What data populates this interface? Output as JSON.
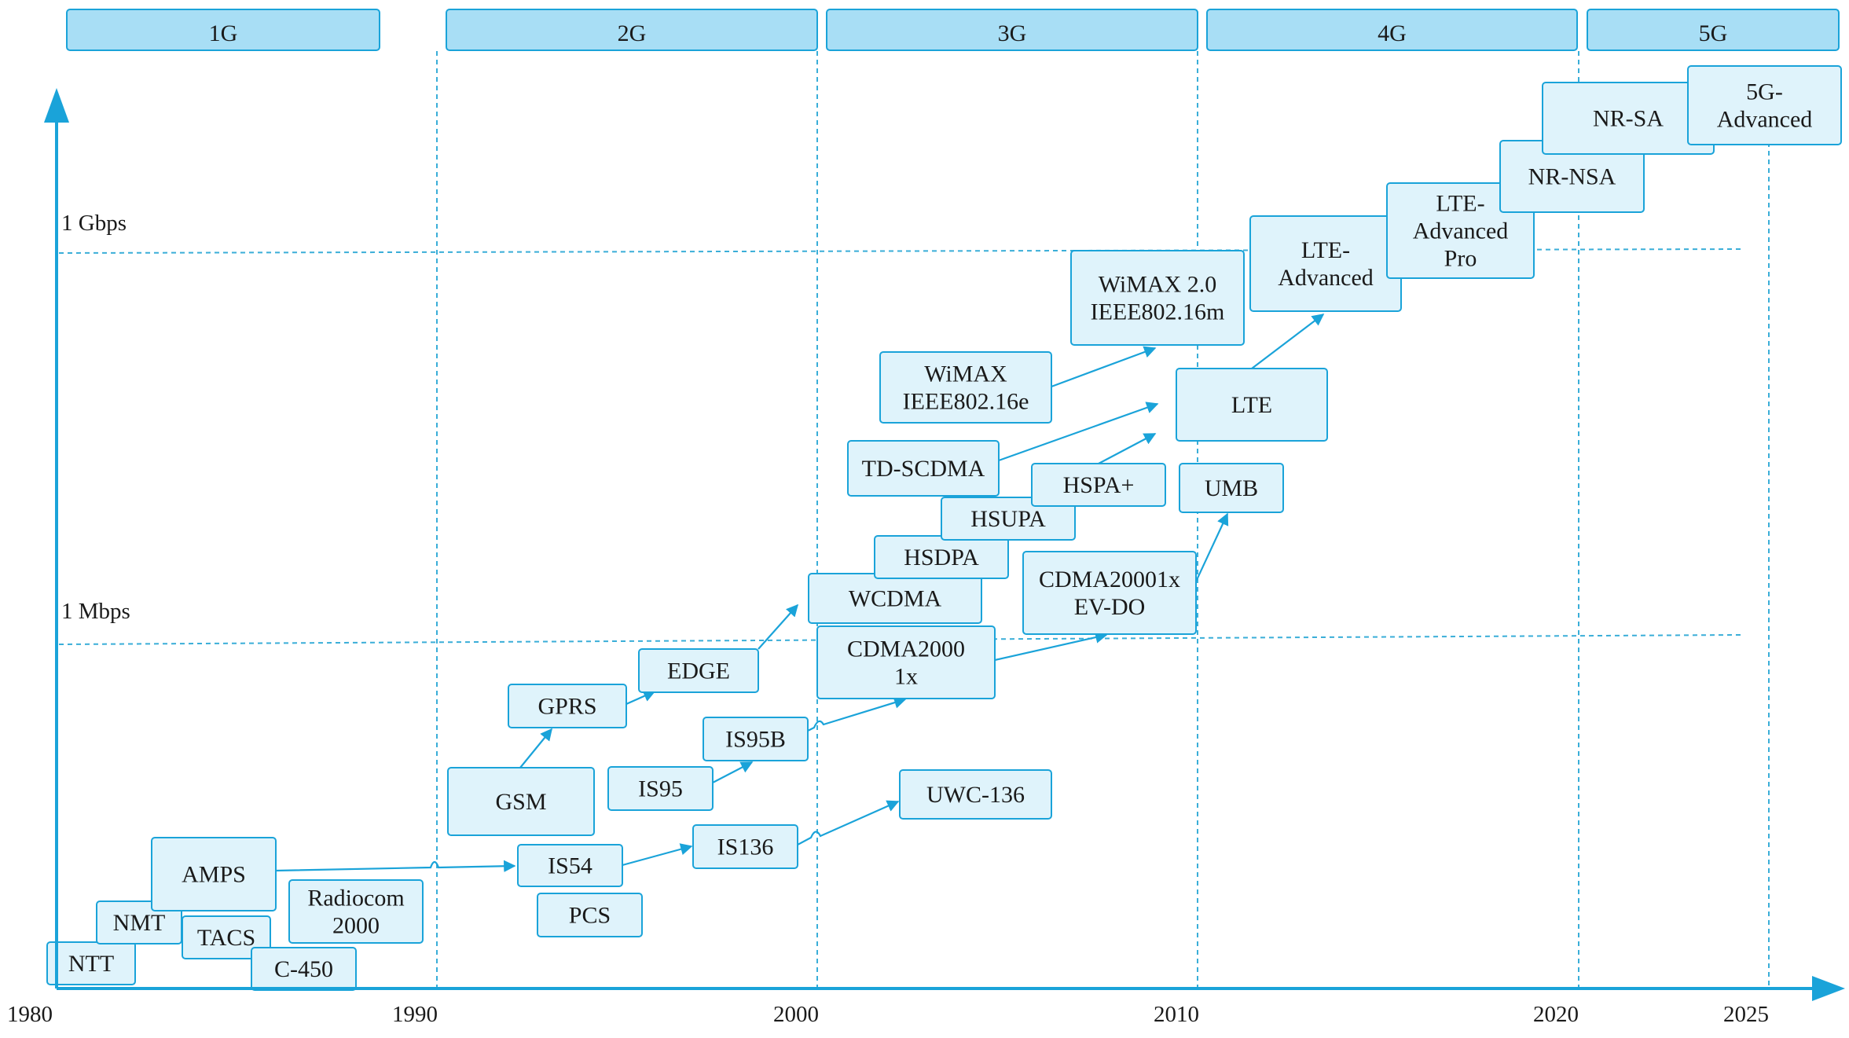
{
  "colors": {
    "accent": "#1aa3d9",
    "box_fill": "#dff3fb",
    "gen_fill": "#a8def5",
    "grid": "#3aaed8",
    "text": "#1a1a1a"
  },
  "generations": [
    "1G",
    "2G",
    "3G",
    "4G",
    "5G"
  ],
  "axis": {
    "x_ticks": [
      "1980",
      "1990",
      "2000",
      "2010",
      "2020",
      "2025"
    ],
    "y_levels": [
      "1 Mbps",
      "1 Gbps"
    ]
  },
  "technologies": {
    "ntt": [
      "NTT"
    ],
    "nmt": [
      "NMT"
    ],
    "amps": [
      "AMPS"
    ],
    "tacs": [
      "TACS"
    ],
    "c450": [
      "C-450"
    ],
    "radiocom": [
      "Radiocom",
      "2000"
    ],
    "gsm": [
      "GSM"
    ],
    "gprs": [
      "GPRS"
    ],
    "edge": [
      "EDGE"
    ],
    "is54": [
      "IS54"
    ],
    "pcs": [
      "PCS"
    ],
    "is136": [
      "IS136"
    ],
    "is95": [
      "IS95"
    ],
    "is95b": [
      "IS95B"
    ],
    "wcdma": [
      "WCDMA"
    ],
    "hsdpa": [
      "HSDPA"
    ],
    "hsupa": [
      "HSUPA"
    ],
    "hspa_plus": [
      "HSPA+"
    ],
    "cdma2000_1x": [
      "CDMA2000",
      "1x"
    ],
    "cdma_evdo": [
      "CDMA20001x",
      "EV-DO"
    ],
    "uwc136": [
      "UWC-136"
    ],
    "td_scdma": [
      "TD-SCDMA"
    ],
    "wimax": [
      "WiMAX",
      "IEEE802.16e"
    ],
    "wimax2": [
      "WiMAX 2.0",
      "IEEE802.16m"
    ],
    "lte": [
      "LTE"
    ],
    "umb": [
      "UMB"
    ],
    "lte_advanced": [
      "LTE-",
      "Advanced"
    ],
    "lte_advanced_pro": [
      "LTE-",
      "Advanced",
      "Pro"
    ],
    "nr_nsa": [
      "NR-NSA"
    ],
    "nr_sa": [
      "NR-SA"
    ],
    "advanced_5g": [
      "5G-",
      "Advanced"
    ]
  },
  "evolution_links": [
    [
      "gsm",
      "gprs"
    ],
    [
      "gprs",
      "edge"
    ],
    [
      "edge",
      "wcdma"
    ],
    [
      "amps",
      "is54"
    ],
    [
      "is54",
      "is136"
    ],
    [
      "is136",
      "uwc136"
    ],
    [
      "is95",
      "is95b"
    ],
    [
      "is95b",
      "cdma2000_1x"
    ],
    [
      "cdma2000_1x",
      "cdma_evdo"
    ],
    [
      "cdma_evdo",
      "umb"
    ],
    [
      "td_scdma",
      "lte"
    ],
    [
      "hspa_plus",
      "lte"
    ],
    [
      "wimax",
      "wimax2"
    ],
    [
      "lte",
      "lte_advanced"
    ]
  ]
}
